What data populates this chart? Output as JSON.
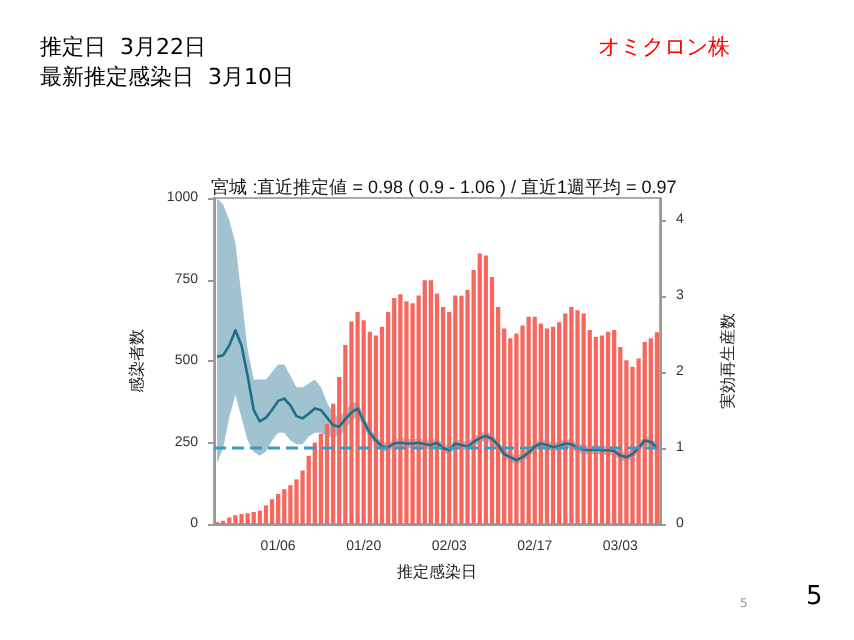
{
  "chart_data": {
    "type": "bar",
    "title": "宮城 :直近推定値 = 0.98 ( 0.9 - 1.06 ) / 直近1週平均 = 0.97",
    "xlabel": "推定感染日",
    "ylabel": "感染者数",
    "y2label": "実効再生産数",
    "annotations": [
      "推定日  3月22日",
      "最新推定感染日  3月10日",
      "オミクロン株",
      "5",
      "5"
    ],
    "categories": [
      null,
      null,
      null,
      null,
      null,
      null,
      null,
      null,
      null,
      null,
      "01/06",
      null,
      null,
      null,
      null,
      null,
      null,
      null,
      null,
      null,
      null,
      null,
      null,
      null,
      "01/20",
      null,
      null,
      null,
      null,
      null,
      null,
      null,
      null,
      null,
      null,
      null,
      null,
      null,
      "02/03",
      null,
      null,
      null,
      null,
      null,
      null,
      null,
      null,
      null,
      null,
      null,
      null,
      null,
      "02/17",
      null,
      null,
      null,
      null,
      null,
      null,
      null,
      null,
      null,
      null,
      null,
      null,
      null,
      "03/03",
      null,
      null,
      null,
      null,
      null,
      null
    ],
    "series": [
      {
        "color": "#f8675e",
        "values": [
          6,
          10,
          20,
          27,
          31,
          33,
          37,
          41,
          57,
          76,
          92,
          107,
          119,
          137,
          164,
          209,
          250,
          277,
          307,
          369,
          451,
          549,
          621,
          650,
          625,
          590,
          578,
          605,
          650,
          693,
          705,
          683,
          677,
          701,
          748,
          748,
          707,
          666,
          650,
          701,
          700,
          718,
          779,
          830,
          824,
          758,
          666,
          600,
          570,
          584,
          609,
          636,
          636,
          615,
          600,
          605,
          619,
          646,
          666,
          656,
          646,
          595,
          574,
          578,
          590,
          595,
          543,
          502,
          482,
          508,
          558,
          570,
          588
        ]
      },
      {
        "type": "line",
        "axis": "y2",
        "color": "#1d6f8c",
        "values": [
          2.2,
          2.22,
          2.35,
          2.55,
          2.35,
          1.95,
          1.5,
          1.35,
          1.4,
          1.5,
          1.62,
          1.65,
          1.56,
          1.42,
          1.39,
          1.45,
          1.52,
          1.5,
          1.4,
          1.3,
          1.28,
          1.38,
          1.47,
          1.52,
          1.35,
          1.2,
          1.1,
          1.02,
          1.01,
          1.06,
          1.07,
          1.06,
          1.06,
          1.07,
          1.05,
          1.04,
          1.07,
          1.0,
          0.97,
          1.06,
          1.04,
          1.02,
          1.08,
          1.13,
          1.16,
          1.12,
          1.04,
          0.92,
          0.88,
          0.84,
          0.88,
          0.94,
          1.02,
          1.06,
          1.04,
          1.01,
          1.03,
          1.06,
          1.05,
          1.0,
          0.98,
          0.97,
          0.98,
          0.97,
          0.97,
          0.96,
          0.9,
          0.88,
          0.92,
          1.0,
          1.1,
          1.08,
          1.0
        ],
        "lower": [
          0.8,
          1.0,
          1.4,
          1.7,
          1.4,
          1.1,
          0.95,
          0.9,
          0.95,
          1.1,
          1.2,
          1.2,
          1.1,
          1.05,
          1.05,
          1.15,
          1.2,
          1.2,
          1.15,
          1.15,
          1.15,
          1.25,
          1.35,
          1.42,
          1.27,
          1.13,
          1.04,
          0.96,
          0.95,
          1.0,
          1.01,
          1.0,
          1.0,
          1.01,
          0.99,
          0.98,
          1.01,
          0.94,
          0.91,
          1.0,
          0.98,
          0.96,
          1.02,
          1.07,
          1.1,
          1.06,
          0.98,
          0.86,
          0.82,
          0.78,
          0.82,
          0.88,
          0.96,
          1.0,
          0.98,
          0.95,
          0.97,
          1.0,
          0.99,
          0.94,
          0.92,
          0.91,
          0.92,
          0.91,
          0.91,
          0.9,
          0.84,
          0.82,
          0.86,
          0.94,
          1.04,
          1.02,
          0.94
        ],
        "upper": [
          4.29,
          4.2,
          4.0,
          3.7,
          3.0,
          2.3,
          1.9,
          1.9,
          1.9,
          2.0,
          2.1,
          2.1,
          1.95,
          1.8,
          1.8,
          1.85,
          1.9,
          1.8,
          1.6,
          1.45,
          1.4,
          1.5,
          1.58,
          1.62,
          1.42,
          1.27,
          1.16,
          1.08,
          1.07,
          1.12,
          1.13,
          1.12,
          1.12,
          1.13,
          1.11,
          1.1,
          1.13,
          1.06,
          1.03,
          1.12,
          1.1,
          1.08,
          1.14,
          1.19,
          1.22,
          1.18,
          1.1,
          0.98,
          0.94,
          0.9,
          0.94,
          1.0,
          1.08,
          1.12,
          1.1,
          1.07,
          1.09,
          1.12,
          1.11,
          1.06,
          1.04,
          1.03,
          1.04,
          1.03,
          1.03,
          1.02,
          0.96,
          0.94,
          0.98,
          1.06,
          1.16,
          1.14,
          1.06
        ]
      }
    ],
    "ylim": [
      0,
      1000
    ],
    "yticks": [
      0,
      250,
      500,
      750,
      1000
    ],
    "y2lim": [
      0,
      4.29
    ],
    "y2ticks": [
      0,
      1,
      2,
      3,
      4
    ],
    "ref_lines": [
      {
        "axis": "y2",
        "value": 1,
        "color": "#3a9cc4",
        "line_style": "dashed"
      }
    ],
    "marker": "none",
    "grid": false
  }
}
